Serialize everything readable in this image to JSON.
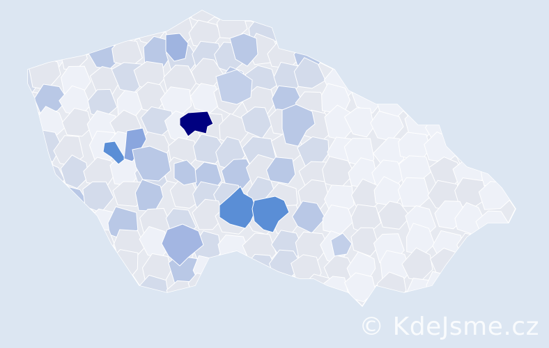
{
  "map": {
    "background": "#dce6f2",
    "base_fill": "#e6e9f0",
    "stroke": "#ffffff",
    "scale_colors": [
      "#eef1f8",
      "#e3e6ee",
      "#d3dbeb",
      "#b9c8e6",
      "#9fb4e0",
      "#8aa6de",
      "#5a8ed6",
      "#000080"
    ],
    "highlighted_regions": [
      {
        "level": 7,
        "color": "#000080"
      },
      {
        "level": 6,
        "color": "#5a8ed6"
      },
      {
        "level": 5,
        "color": "#8aa6de"
      },
      {
        "level": 6,
        "color": "#5a8ed6"
      },
      {
        "level": 6,
        "color": "#5a8ed6"
      },
      {
        "level": 4,
        "color": "#9fb4e0"
      },
      {
        "level": 4,
        "color": "#a3b6e2"
      },
      {
        "level": 3,
        "color": "#b9c8e6"
      },
      {
        "level": 3,
        "color": "#b9c8e6"
      },
      {
        "level": 3,
        "color": "#b9c8e6"
      },
      {
        "level": 3,
        "color": "#b9c8e6"
      },
      {
        "level": 3,
        "color": "#c2cfe9"
      },
      {
        "level": 3,
        "color": "#c2cfe9"
      }
    ]
  },
  "watermark": "© KdeJsme.cz"
}
